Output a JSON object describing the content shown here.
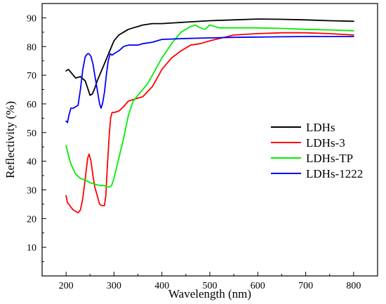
{
  "chart_data": {
    "type": "line",
    "title": "",
    "xlabel": "Wavelength (nm)",
    "ylabel": "Reflectivity (%)",
    "xlim": [
      150,
      850
    ],
    "ylim": [
      0,
      95
    ],
    "xticks": [
      200,
      300,
      400,
      500,
      600,
      700,
      800
    ],
    "yticks": [
      10,
      20,
      30,
      40,
      50,
      60,
      70,
      80,
      90
    ],
    "xtick_labels": [
      "200",
      "300",
      "400",
      "500",
      "600",
      "700",
      "800"
    ],
    "ytick_labels": [
      "10",
      "20",
      "30",
      "40",
      "50",
      "60",
      "70",
      "80",
      "90"
    ],
    "grid": false,
    "legend_position": "right",
    "series": [
      {
        "name": "LDHs",
        "color": "#000000",
        "x": [
          200,
          205,
          210,
          215,
          220,
          230,
          240,
          245,
          250,
          255,
          260,
          265,
          270,
          280,
          290,
          300,
          310,
          320,
          330,
          340,
          350,
          360,
          380,
          400,
          450,
          500,
          550,
          600,
          650,
          700,
          750,
          800
        ],
        "y": [
          71.5,
          72,
          71,
          70,
          69,
          69.5,
          68,
          65.5,
          63,
          63.5,
          65.5,
          68,
          70,
          74,
          78,
          82,
          84,
          85,
          86,
          86.5,
          87,
          87.5,
          88,
          88,
          88.5,
          89,
          89.3,
          89.6,
          89.5,
          89.3,
          89,
          88.8
        ]
      },
      {
        "name": "LDHs-3",
        "color": "#ff0000",
        "x": [
          200,
          203,
          206,
          210,
          215,
          220,
          225,
          230,
          235,
          240,
          245,
          248,
          252,
          256,
          260,
          265,
          270,
          275,
          280,
          283,
          286,
          290,
          293,
          296,
          300,
          310,
          320,
          330,
          340,
          350,
          360,
          380,
          400,
          420,
          440,
          460,
          480,
          500,
          550,
          600,
          650,
          700,
          750,
          800
        ],
        "y": [
          28,
          25.5,
          25,
          24,
          23,
          22.5,
          22,
          23,
          27,
          34,
          41,
          42.5,
          40,
          35,
          31,
          28,
          25,
          24.5,
          24.5,
          28,
          38,
          49,
          55,
          57,
          57,
          57.5,
          59,
          61,
          61.5,
          62,
          62.5,
          66,
          72,
          76,
          78.5,
          80.5,
          81,
          82,
          84,
          84.5,
          84.8,
          84.8,
          84.5,
          84
        ]
      },
      {
        "name": "LDHs-TP",
        "color": "#00ee00",
        "x": [
          200,
          205,
          210,
          220,
          230,
          240,
          250,
          260,
          270,
          280,
          285,
          290,
          295,
          300,
          310,
          320,
          330,
          340,
          350,
          360,
          370,
          380,
          400,
          420,
          440,
          460,
          470,
          480,
          490,
          500,
          510,
          520,
          550,
          600,
          650,
          700,
          750,
          800
        ],
        "y": [
          45.5,
          42,
          39,
          35.5,
          34,
          33.5,
          32.5,
          32,
          31.5,
          31.5,
          31,
          31,
          31.5,
          34,
          41,
          48,
          56,
          61,
          63,
          65,
          67,
          70,
          76,
          81,
          85,
          87,
          87.5,
          86.5,
          86,
          87.5,
          87,
          86.5,
          86.5,
          86.5,
          86.3,
          86,
          85.8,
          85.5
        ]
      },
      {
        "name": "LDHs-1222",
        "color": "#0000ff",
        "x": [
          200,
          203,
          206,
          210,
          215,
          220,
          225,
          230,
          235,
          240,
          245,
          248,
          252,
          256,
          260,
          265,
          270,
          273,
          276,
          280,
          284,
          288,
          292,
          296,
          300,
          310,
          320,
          330,
          340,
          350,
          360,
          380,
          400,
          450,
          500,
          550,
          600,
          650,
          700,
          750,
          800
        ],
        "y": [
          54,
          53.5,
          56,
          58.5,
          58.5,
          59,
          59.5,
          65,
          72,
          76.5,
          77.5,
          77.5,
          76.5,
          74,
          70,
          65,
          60,
          58.5,
          60,
          64,
          70,
          75,
          77.5,
          77,
          77.5,
          78.5,
          80,
          80.5,
          80.5,
          80.5,
          81,
          81.5,
          82.5,
          82.8,
          83,
          83.2,
          83.3,
          83.4,
          83.5,
          83.5,
          83.5
        ]
      }
    ]
  }
}
